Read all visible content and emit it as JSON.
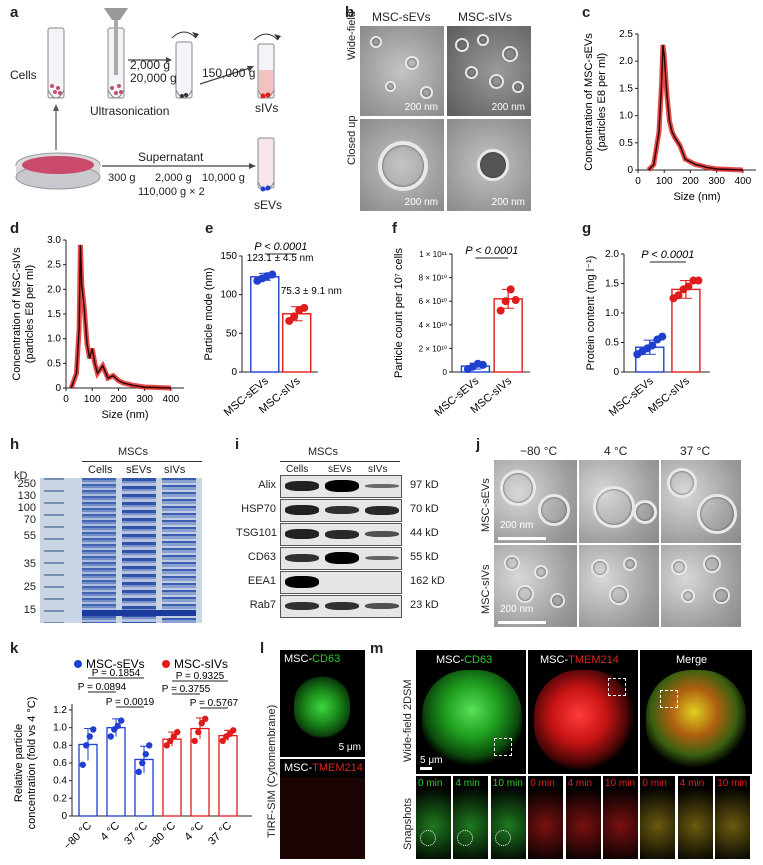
{
  "panel_labels": {
    "a": "a",
    "b": "b",
    "c": "c",
    "d": "d",
    "e": "e",
    "f": "f",
    "g": "g",
    "h": "h",
    "i": "i",
    "j": "j",
    "k": "k",
    "l": "l",
    "m": "m"
  },
  "panel_a": {
    "cells": "Cells",
    "ultrasonication": "Ultrasonication",
    "spin1": "2,000 g",
    "spin2": "20,000 g",
    "spin3": "150,000 g",
    "silvs": "sIVs",
    "supernatant": "Supernatant",
    "g300": "300 g",
    "g2000": "2,000 g",
    "g10000": "10,000 g",
    "g110000": "110,000 g × 2",
    "sevs": "sEVs"
  },
  "panel_b": {
    "col1": "MSC-sEVs",
    "col2": "MSC-sIVs",
    "row1": "Wide-field",
    "row2": "Closed up",
    "scale": "200 nm"
  },
  "panel_c": {
    "ylabel1": "Concentration of MSC-sEVs",
    "ylabel2": "(particles E8 per ml)",
    "xlabel": "Size (nm)",
    "yticks": [
      "0",
      "0.5",
      "1.0",
      "1.5",
      "2.0",
      "2.5"
    ],
    "xticks": [
      "0",
      "100",
      "200",
      "300",
      "400"
    ]
  },
  "panel_d": {
    "ylabel1": "Concentration of MSC-sIVs",
    "ylabel2": "(particles E8 per ml)",
    "xlabel": "Size (nm)",
    "yticks": [
      "0",
      "0.5",
      "1.0",
      "1.5",
      "2.0",
      "2.5",
      "3.0"
    ],
    "xticks": [
      "0",
      "100",
      "200",
      "300",
      "400"
    ]
  },
  "panel_e": {
    "ylabel": "Particle mode (nm)",
    "p": "P < 0.0001",
    "ann1": "123.1 ± 4.5 nm",
    "ann2": "75.3 ± 9.1 nm",
    "yticks": [
      "0",
      "50",
      "100",
      "150"
    ],
    "cats": [
      "MSC-sEVs",
      "MSC-sIVs"
    ]
  },
  "panel_f": {
    "ylabel": "Particle count per 10⁷ cells",
    "p": "P < 0.0001",
    "yticks": [
      "0",
      "2 × 10¹⁰",
      "4 × 10¹⁰",
      "6 × 10¹⁰",
      "8 × 10¹⁰",
      "1 × 10¹¹"
    ],
    "cats": [
      "MSC-sEVs",
      "MSC-sIVs"
    ]
  },
  "panel_g": {
    "ylabel": "Protein content (mg l⁻¹)",
    "p": "P < 0.0001",
    "yticks": [
      "0",
      "0.5",
      "1.0",
      "1.5",
      "2.0"
    ],
    "cats": [
      "MSC-sEVs",
      "MSC-sIVs"
    ]
  },
  "panel_h": {
    "kd": "kD",
    "group": "MSCs",
    "lanes": [
      "Cells",
      "sEVs",
      "sIVs"
    ],
    "markers": [
      "250",
      "130",
      "100",
      "70",
      "55",
      "35",
      "25",
      "15"
    ]
  },
  "panel_i": {
    "group": "MSCs",
    "lanes": [
      "Cells",
      "sEVs",
      "sIVs"
    ],
    "rows": [
      {
        "name": "Alix",
        "kd": "97 kD"
      },
      {
        "name": "HSP70",
        "kd": "70 kD"
      },
      {
        "name": "TSG101",
        "kd": "44 kD"
      },
      {
        "name": "CD63",
        "kd": "55 kD"
      },
      {
        "name": "EEA1",
        "kd": "162 kD"
      },
      {
        "name": "Rab7",
        "kd": "23 kD"
      }
    ]
  },
  "panel_j": {
    "temps": [
      "−80 °C",
      "4 °C",
      "37 °C"
    ],
    "rows": [
      "MSC-sEVs",
      "MSC-sIVs"
    ],
    "scale": "200 nm"
  },
  "panel_k": {
    "legend": [
      "MSC-sEVs",
      "MSC-sIVs"
    ],
    "ylabel1": "Relative particle",
    "ylabel2": "concentration (fold vs 4 °C)",
    "yticks": [
      "0",
      "0.2",
      "0.4",
      "0.6",
      "0.8",
      "1.0",
      "1.2"
    ],
    "xcats": [
      "−80 °C",
      "4 °C",
      "37 °C",
      "−80 °C",
      "4 °C",
      "37 °C"
    ],
    "pvals": [
      "P = 0.1854",
      "P = 0.0894",
      "P = 0.0019",
      "P = 0.9325",
      "P = 0.3755",
      "P = 0.5767"
    ]
  },
  "panel_l": {
    "side": "TIRF-SIM (Cytomembrane)",
    "t1a": "MSC-",
    "t1b": "CD63",
    "t2a": "MSC-",
    "t2b": "TMEM214",
    "scale": "5 μm"
  },
  "panel_m": {
    "c1a": "MSC-",
    "c1b": "CD63",
    "c2a": "MSC-",
    "c2b": "TMEM214",
    "c3": "Merge",
    "side1": "Wide-field 2DSM",
    "side2": "Snapshots",
    "scale": "5 μm",
    "times": [
      "0 min",
      "4 min",
      "10 min",
      "0 min",
      "4 min",
      "10 min",
      "0 min",
      "4 min",
      "10 min"
    ]
  },
  "colors": {
    "blue": "#1f3fcf",
    "red": "#e01b1b",
    "green": "#2ecc2e",
    "accent_red": "#e02020"
  },
  "chart_data": [
    {
      "type": "line",
      "title": "",
      "xlabel": "Size (nm)",
      "ylabel": "Concentration of MSC-sEVs (particles E8 per ml)",
      "xlim": [
        0,
        450
      ],
      "ylim": [
        0,
        2.5
      ],
      "x": [
        40,
        60,
        80,
        90,
        95,
        100,
        110,
        120,
        130,
        140,
        160,
        180,
        200,
        220,
        240,
        260,
        300,
        350,
        400
      ],
      "y": [
        0,
        0.1,
        0.7,
        1.6,
        2.3,
        2.1,
        1.4,
        0.9,
        0.7,
        0.6,
        0.45,
        0.2,
        0.15,
        0.1,
        0.08,
        0.05,
        0.02,
        0.01,
        0
      ]
    },
    {
      "type": "line",
      "title": "",
      "xlabel": "Size (nm)",
      "ylabel": "Concentration of MSC-sIVs (particles E8 per ml)",
      "xlim": [
        0,
        450
      ],
      "ylim": [
        0,
        3.0
      ],
      "x": [
        20,
        40,
        50,
        55,
        60,
        70,
        80,
        90,
        100,
        110,
        120,
        140,
        160,
        180,
        200,
        220,
        260,
        300,
        400
      ],
      "y": [
        0,
        0.3,
        1.2,
        2.9,
        2.1,
        1.6,
        0.9,
        0.6,
        0.8,
        0.5,
        0.3,
        0.45,
        0.2,
        0.25,
        0.15,
        0.1,
        0.05,
        0.02,
        0
      ]
    },
    {
      "type": "bar",
      "xlabel": "",
      "ylabel": "Particle mode (nm)",
      "categories": [
        "MSC-sEVs",
        "MSC-sIVs"
      ],
      "values": [
        123.1,
        75.3
      ],
      "sd": [
        4.5,
        9.1
      ],
      "ylim": [
        0,
        150
      ],
      "points": [
        [
          118,
          121,
          124,
          126
        ],
        [
          66,
          72,
          80,
          83
        ]
      ]
    },
    {
      "type": "bar",
      "xlabel": "",
      "ylabel": "Particle count per 10⁷ cells",
      "categories": [
        "MSC-sEVs",
        "MSC-sIVs"
      ],
      "values": [
        5000000000,
        62000000000
      ],
      "sd": [
        2500000000,
        8000000000
      ],
      "ylim": [
        0,
        100000000000
      ],
      "points": [
        [
          2500000000,
          4500000000,
          7000000000,
          6000000000
        ],
        [
          52000000000,
          60000000000,
          70000000000,
          61000000000
        ]
      ]
    },
    {
      "type": "bar",
      "xlabel": "",
      "ylabel": "Protein content (mg l⁻¹)",
      "categories": [
        "MSC-sEVs",
        "MSC-sIVs"
      ],
      "values": [
        0.42,
        1.4
      ],
      "sd": [
        0.12,
        0.15
      ],
      "ylim": [
        0,
        2.0
      ],
      "points": [
        [
          0.3,
          0.35,
          0.4,
          0.45,
          0.55,
          0.6
        ],
        [
          1.25,
          1.3,
          1.4,
          1.45,
          1.55,
          1.55
        ]
      ]
    },
    {
      "type": "bar",
      "xlabel": "",
      "ylabel": "Relative particle concentration (fold vs 4 °C)",
      "categories": [
        "−80 °C",
        "4 °C",
        "37 °C"
      ],
      "ylim": [
        0,
        1.2
      ],
      "series": [
        {
          "name": "MSC-sEVs",
          "values": [
            0.81,
            1.0,
            0.64
          ],
          "sd": [
            0.18,
            0.1,
            0.15
          ],
          "points": [
            [
              0.58,
              0.8,
              0.9,
              0.98
            ],
            [
              0.9,
              0.98,
              1.02,
              1.08
            ],
            [
              0.5,
              0.6,
              0.7,
              0.8
            ]
          ]
        },
        {
          "name": "MSC-sIVs",
          "values": [
            0.87,
            0.99,
            0.91
          ],
          "sd": [
            0.08,
            0.12,
            0.06
          ],
          "points": [
            [
              0.8,
              0.85,
              0.9,
              0.95
            ],
            [
              0.85,
              0.95,
              1.05,
              1.1
            ],
            [
              0.85,
              0.9,
              0.93,
              0.97
            ]
          ]
        }
      ]
    }
  ]
}
